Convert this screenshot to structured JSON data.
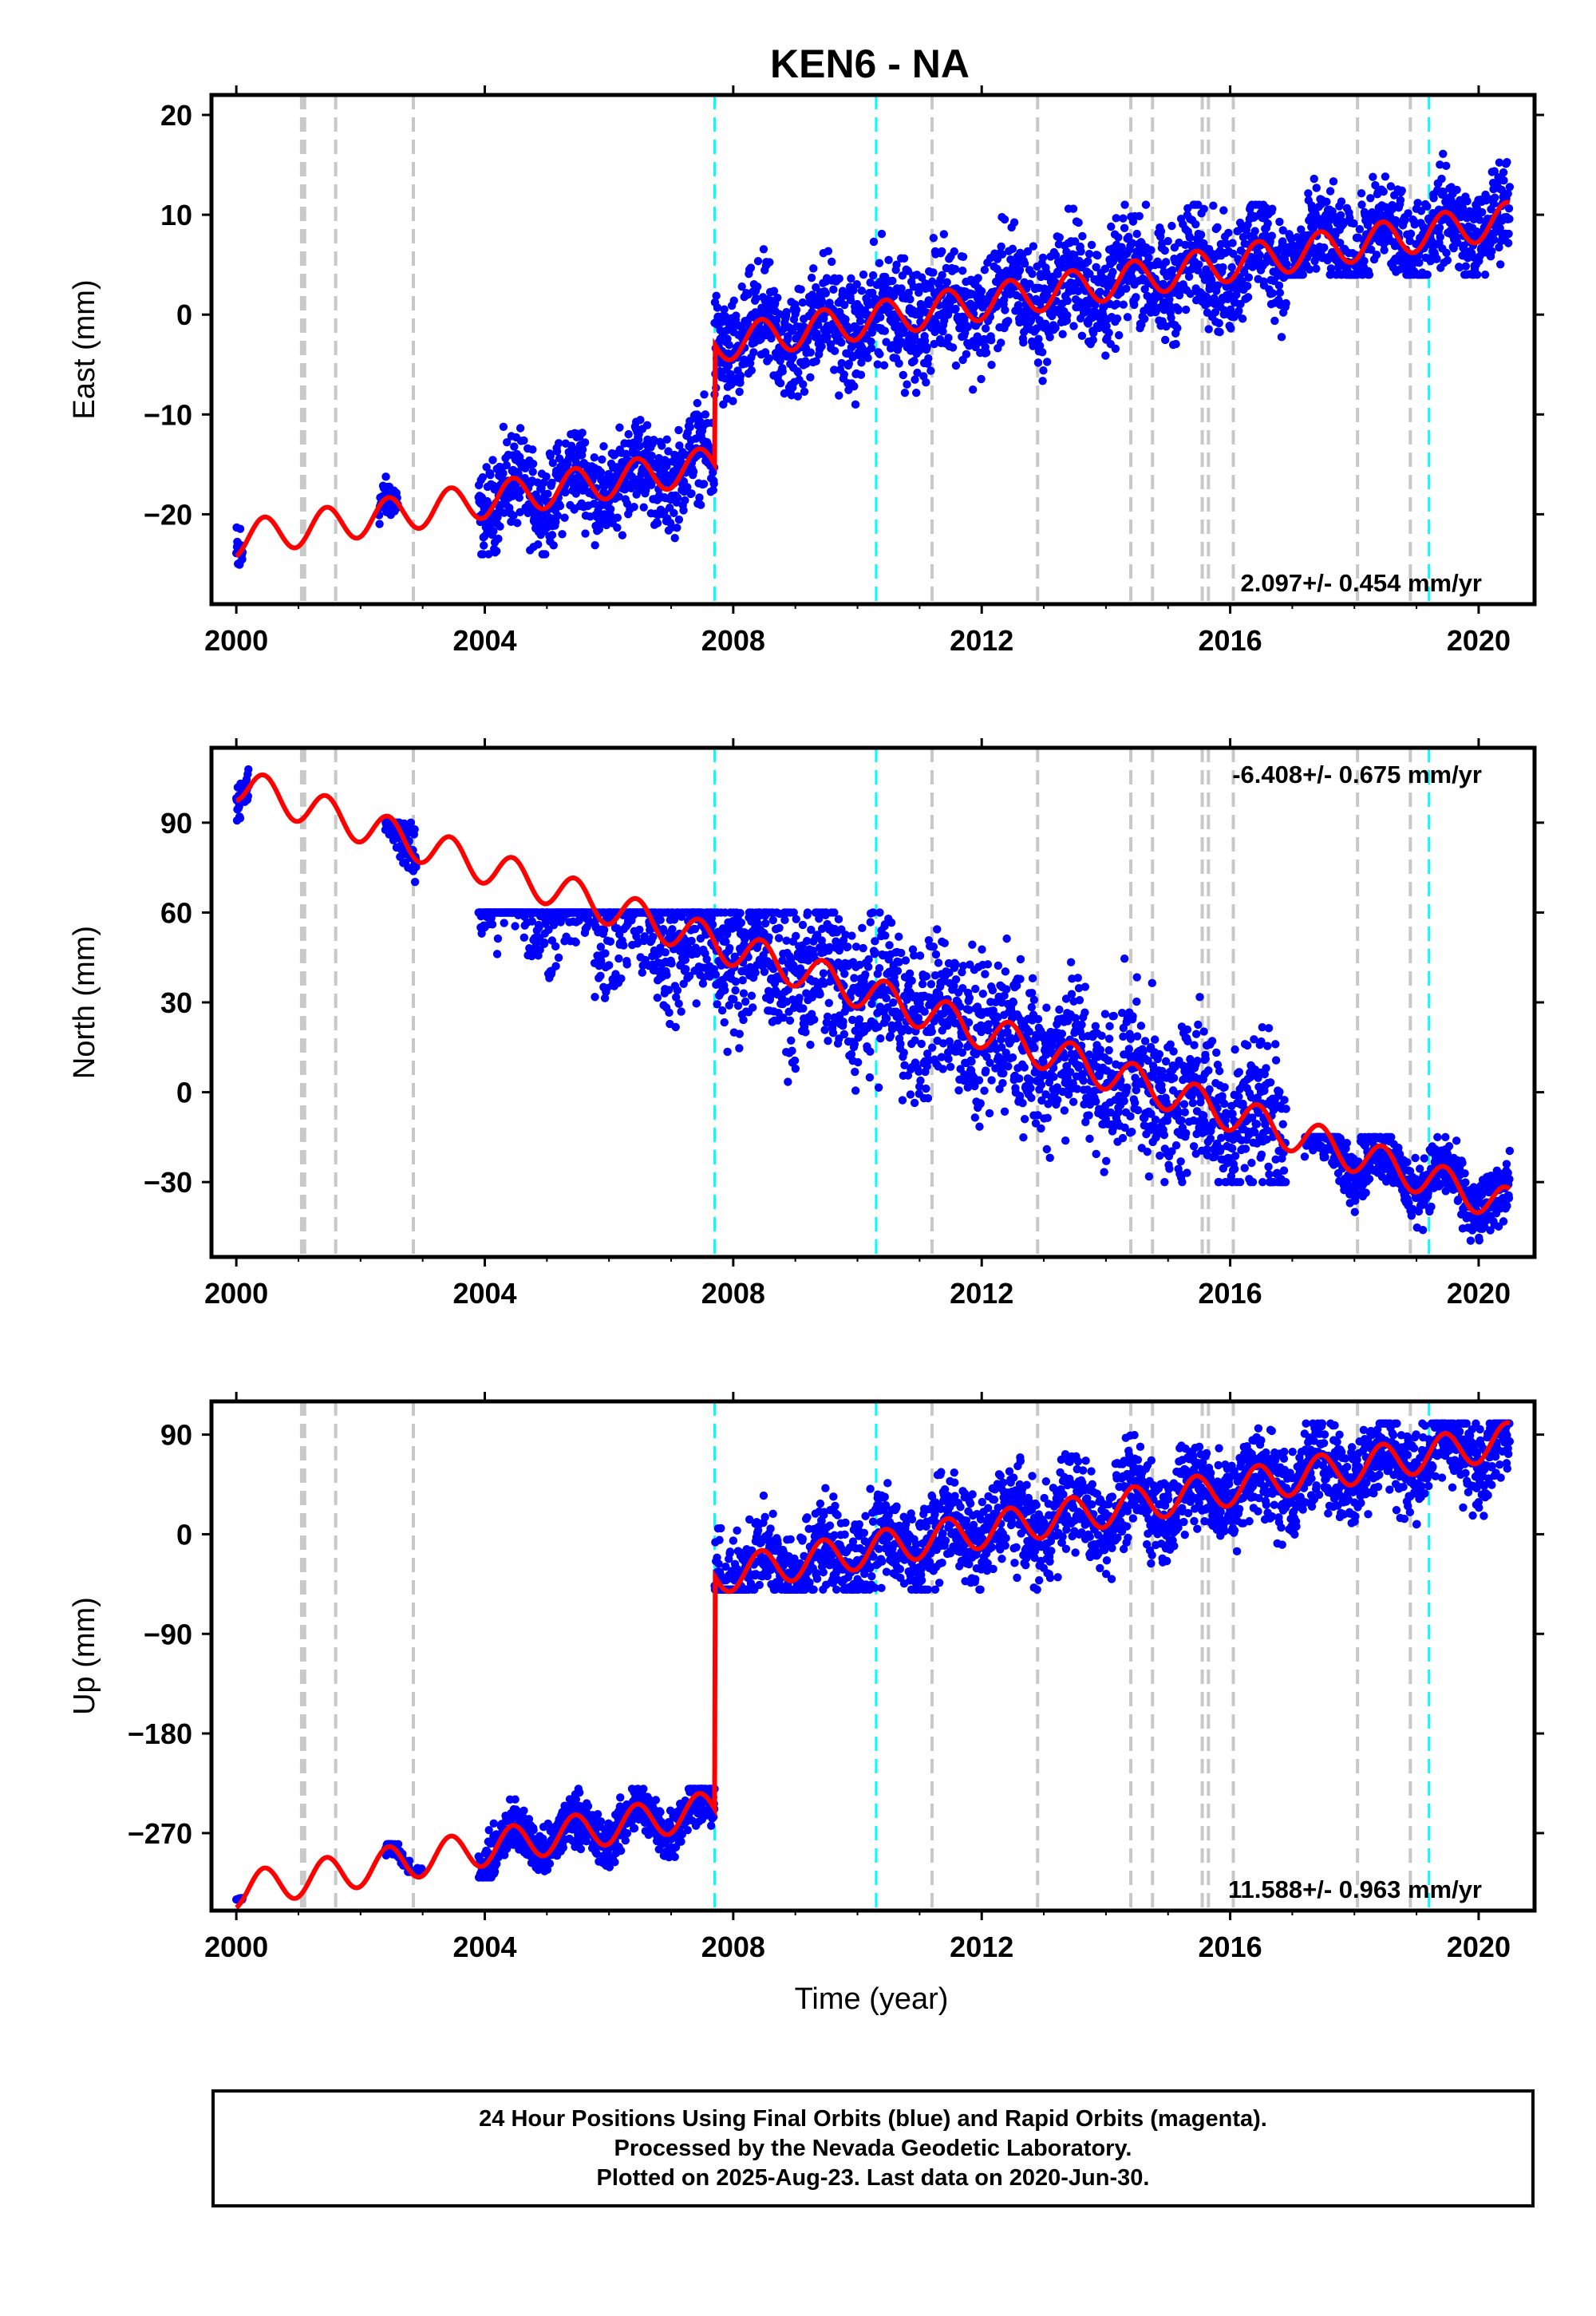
{
  "title": "KEN6 - NA",
  "xlabel": "Time (year)",
  "colors": {
    "final_orbits": "#0000ff",
    "model_fit": "#ff0000",
    "equipment_change": "#c8c8c8",
    "earthquake": "#00ffff"
  },
  "footer": {
    "line1": "24 Hour Positions Using Final Orbits (blue) and Rapid Orbits (magenta).",
    "line2": "Processed by the Nevada Geodetic Laboratory.",
    "line3": "Plotted on 2025-Aug-23. Last data on 2020-Jun-30."
  },
  "chart_data": [
    {
      "type": "scatter",
      "component": "east",
      "ylabel": "East (mm)",
      "xlim": [
        1999.6,
        2020.9
      ],
      "ylim": [
        -29,
        22
      ],
      "xticks": [
        2000,
        2004,
        2008,
        2012,
        2016,
        2020
      ],
      "yticks": [
        -20,
        -10,
        0,
        10,
        20
      ],
      "ytick_labels": [
        "−20",
        "−10",
        "0",
        "10",
        "20"
      ],
      "rate_label": "2.097+/- 0.454 mm/yr",
      "rate_label_position": "bottom-right",
      "data_ranges": [
        {
          "x": [
            2000.0,
            2000.1
          ],
          "y": [
            -28,
            -16
          ]
        },
        {
          "x": [
            2002.3,
            2002.6
          ],
          "y": [
            -22,
            -15
          ]
        },
        {
          "x": [
            2003.9,
            2007.7
          ],
          "y": [
            -24,
            -8
          ]
        },
        {
          "x": [
            2007.7,
            2016.9
          ],
          "y": [
            -9,
            11
          ]
        },
        {
          "x": [
            2016.9,
            2020.5
          ],
          "y": [
            4,
            21
          ]
        }
      ],
      "trend_start": [
        2000.0,
        -22.5
      ],
      "trend_end": [
        2020.5,
        9.5
      ],
      "offsets": [
        {
          "x": 2007.7,
          "delta": 12
        }
      ]
    },
    {
      "type": "scatter",
      "component": "north",
      "ylabel": "North (mm)",
      "xlim": [
        1999.6,
        2020.9
      ],
      "ylim": [
        -55,
        115
      ],
      "xticks": [
        2000,
        2004,
        2008,
        2012,
        2016,
        2020
      ],
      "yticks": [
        -30,
        0,
        30,
        60,
        90
      ],
      "ytick_labels": [
        "−30",
        "0",
        "30",
        "60",
        "90"
      ],
      "rate_label": "-6.408+/- 0.675 mm/yr",
      "rate_label_position": "top-right",
      "data_ranges": [
        {
          "x": [
            2000.0,
            2000.2
          ],
          "y": [
            90,
            112
          ]
        },
        {
          "x": [
            2002.4,
            2002.9
          ],
          "y": [
            60,
            90
          ]
        },
        {
          "x": [
            2003.9,
            2016.9
          ],
          "y": [
            -30,
            60
          ]
        },
        {
          "x": [
            2017.2,
            2020.5
          ],
          "y": [
            -52,
            -15
          ]
        }
      ],
      "trend_start": [
        2000.0,
        103
      ],
      "trend_end": [
        2020.5,
        -38
      ]
    },
    {
      "type": "scatter",
      "component": "up",
      "ylabel": "Up (mm)",
      "xlim": [
        1999.6,
        2020.9
      ],
      "ylim": [
        -340,
        120
      ],
      "xticks": [
        2000,
        2004,
        2008,
        2012,
        2016,
        2020
      ],
      "yticks": [
        -270,
        -180,
        -90,
        0,
        90
      ],
      "ytick_labels": [
        "−270",
        "−180",
        "−90",
        "0",
        "90"
      ],
      "rate_label": "11.588+/- 0.963 mm/yr",
      "rate_label_position": "bottom-right",
      "data_ranges": [
        {
          "x": [
            2000.0,
            2000.1
          ],
          "y": [
            -330,
            -305
          ]
        },
        {
          "x": [
            2002.4,
            2003.0
          ],
          "y": [
            -305,
            -280
          ]
        },
        {
          "x": [
            2003.9,
            2007.7
          ],
          "y": [
            -310,
            -230
          ]
        },
        {
          "x": [
            2007.7,
            2020.5
          ],
          "y": [
            -50,
            100
          ]
        }
      ],
      "trend_start": [
        2000.0,
        -322
      ],
      "trend_end": [
        2020.5,
        85
      ],
      "offsets": [
        {
          "x": 2007.7,
          "delta": 210
        }
      ]
    }
  ],
  "equipment_changes": [
    2001.05,
    2001.1,
    2001.6,
    2002.85,
    2011.2,
    2012.9,
    2014.4,
    2014.75,
    2015.55,
    2015.65,
    2016.05,
    2018.05,
    2018.9
  ],
  "earthquakes": [
    2007.7,
    2010.3,
    2019.2
  ]
}
